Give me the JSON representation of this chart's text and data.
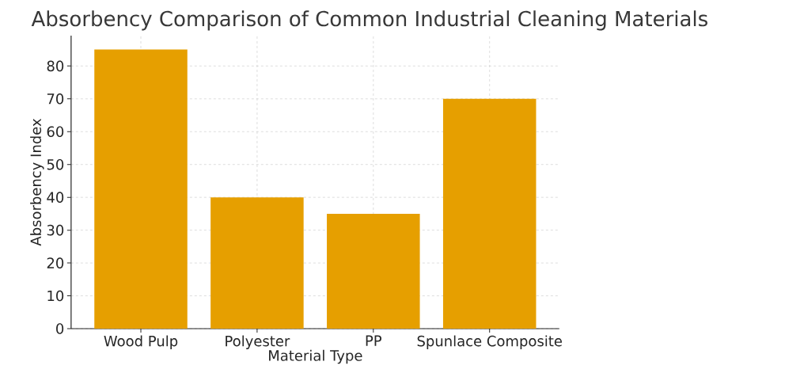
{
  "chart_data": {
    "type": "bar",
    "title": "Absorbency Comparison of Common Industrial Cleaning Materials",
    "xlabel": "Material Type",
    "ylabel": "Absorbency Index",
    "categories": [
      "Wood Pulp",
      "Polyester",
      "PP",
      "Spunlace Composite"
    ],
    "values": [
      85,
      40,
      35,
      70
    ],
    "color": "#e69f00",
    "ylim": [
      0,
      89.25
    ],
    "yticks": [
      0,
      10,
      20,
      30,
      40,
      50,
      60,
      70,
      80
    ],
    "grid": true
  }
}
